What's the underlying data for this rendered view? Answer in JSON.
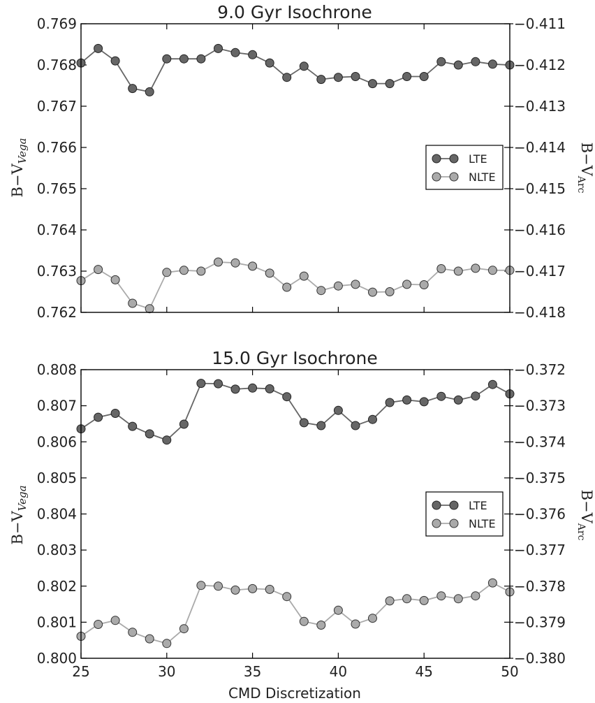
{
  "chart_data": [
    {
      "type": "line",
      "title": "9.0 Gyr Isochrone",
      "ylabel": "B−V",
      "ylabel_sub": "Vega",
      "ylabel_right": "B−V",
      "ylabel_right_sub": "Arc",
      "xlim": [
        25,
        50
      ],
      "ylim": [
        0.762,
        0.769
      ],
      "ylim_right": [
        -0.418,
        -0.411
      ],
      "x_ticks": [
        "25",
        "30",
        "35",
        "40",
        "45",
        "50"
      ],
      "y_ticks": [
        "0.762",
        "0.763",
        "0.764",
        "0.765",
        "0.766",
        "0.767",
        "0.768",
        "0.769"
      ],
      "y_ticks_right": [
        "−0.418",
        "−0.417",
        "−0.416",
        "−0.415",
        "−0.414",
        "−0.413",
        "−0.412",
        "−0.411"
      ],
      "legend_position": "right",
      "x": [
        25,
        26,
        27,
        28,
        29,
        30,
        31,
        32,
        33,
        34,
        35,
        36,
        37,
        38,
        39,
        40,
        41,
        42,
        43,
        44,
        45,
        46,
        47,
        48,
        49,
        50
      ],
      "series": [
        {
          "name": "LTE",
          "axis": "left",
          "color": "#666666",
          "values": [
            0.76805,
            0.7684,
            0.7681,
            0.76743,
            0.76735,
            0.76815,
            0.76815,
            0.76815,
            0.7684,
            0.7683,
            0.76825,
            0.76805,
            0.7677,
            0.76797,
            0.76765,
            0.7677,
            0.76772,
            0.76755,
            0.76755,
            0.76772,
            0.76772,
            0.76808,
            0.768,
            0.76808,
            0.76802,
            0.768
          ]
        },
        {
          "name": "NLTE",
          "axis": "left",
          "color": "#aaaaaa",
          "values": [
            0.76277,
            0.76304,
            0.76279,
            0.76222,
            0.76209,
            0.76297,
            0.76302,
            0.763,
            0.76322,
            0.7632,
            0.76312,
            0.76295,
            0.76261,
            0.76288,
            0.76253,
            0.76264,
            0.76268,
            0.76249,
            0.7625,
            0.76268,
            0.76267,
            0.76306,
            0.763,
            0.76307,
            0.76302,
            0.76302
          ]
        }
      ]
    },
    {
      "type": "line",
      "title": "15.0 Gyr Isochrone",
      "ylabel": "B−V",
      "ylabel_sub": "Vega",
      "ylabel_right": "B−V",
      "ylabel_right_sub": "Arc",
      "xlabel": "CMD Discretization",
      "xlim": [
        25,
        50
      ],
      "ylim": [
        0.8,
        0.808
      ],
      "ylim_right": [
        -0.38,
        -0.372
      ],
      "x_ticks": [
        "25",
        "30",
        "35",
        "40",
        "45",
        "50"
      ],
      "y_ticks": [
        "0.800",
        "0.801",
        "0.802",
        "0.803",
        "0.804",
        "0.805",
        "0.806",
        "0.807",
        "0.808"
      ],
      "y_ticks_right": [
        "−0.380",
        "−0.379",
        "−0.378",
        "−0.377",
        "−0.376",
        "−0.375",
        "−0.374",
        "−0.373",
        "−0.372"
      ],
      "legend_position": "right",
      "x": [
        25,
        26,
        27,
        28,
        29,
        30,
        31,
        32,
        33,
        34,
        35,
        36,
        37,
        38,
        39,
        40,
        41,
        42,
        43,
        44,
        45,
        46,
        47,
        48,
        49,
        50
      ],
      "series": [
        {
          "name": "LTE",
          "axis": "left",
          "color": "#666666",
          "values": [
            0.80636,
            0.80668,
            0.80679,
            0.80643,
            0.80622,
            0.80605,
            0.80649,
            0.80762,
            0.80761,
            0.80746,
            0.80749,
            0.80747,
            0.80725,
            0.80653,
            0.80645,
            0.80687,
            0.80645,
            0.80662,
            0.80709,
            0.80716,
            0.80711,
            0.80726,
            0.80716,
            0.80727,
            0.80759,
            0.80733
          ]
        },
        {
          "name": "NLTE",
          "axis": "left",
          "color": "#aaaaaa",
          "values": [
            0.80061,
            0.80094,
            0.80105,
            0.80072,
            0.80054,
            0.80041,
            0.80082,
            0.80202,
            0.802,
            0.80189,
            0.80193,
            0.80191,
            0.80171,
            0.80102,
            0.80092,
            0.80133,
            0.80095,
            0.80111,
            0.80159,
            0.80165,
            0.8016,
            0.80173,
            0.80165,
            0.80173,
            0.80209,
            0.80184
          ]
        }
      ]
    }
  ]
}
